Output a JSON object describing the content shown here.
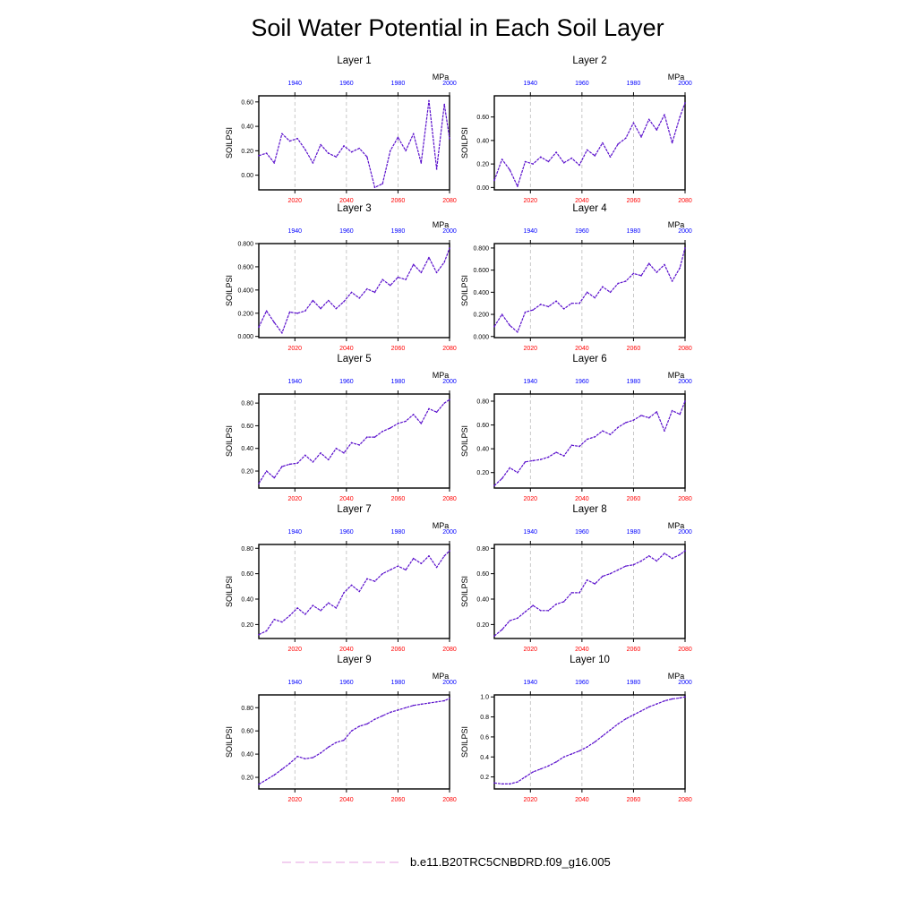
{
  "title": "Soil Water Potential in Each Soil Layer",
  "legend": {
    "label": "b.e11.B20TRC5CNBDRD.f09_g16.005"
  },
  "colors": {
    "line": "#5a10cc",
    "bottom_axis": "#ff0000",
    "top_axis": "#0000ff",
    "legend_line": "#e5a0e0",
    "gridline": "#bbbbbb"
  },
  "chart_data": {
    "type": "line",
    "layout": "5 rows x 2 columns",
    "grid": "vertical dashed lines at 2020, 2040, 2060",
    "legend_placement": "bottom-center",
    "bottom_axis": {
      "range": [
        2006,
        2080
      ],
      "ticks": [
        "2020",
        "2040",
        "2060",
        "2080"
      ]
    },
    "top_axis": {
      "range": [
        1926,
        2000
      ],
      "ticks": [
        "1940",
        "1960",
        "1980",
        "2000"
      ]
    },
    "units": "MPa",
    "ylabel": "SOILPSI",
    "series_name": "b.e11.B20TRC5CNBDRD.f09_g16.005",
    "panels": [
      {
        "title": "Layer 1",
        "ylim": [
          -0.12,
          0.65
        ],
        "yticks": [
          "0.00",
          "0.20",
          "0.40",
          "0.60"
        ],
        "x": [
          2006,
          2009,
          2012,
          2015,
          2018,
          2021,
          2024,
          2027,
          2030,
          2033,
          2036,
          2039,
          2042,
          2045,
          2048,
          2051,
          2054,
          2057,
          2060,
          2063,
          2066,
          2069,
          2072,
          2075,
          2078,
          2080
        ],
        "y": [
          0.16,
          0.18,
          0.1,
          0.34,
          0.28,
          0.3,
          0.21,
          0.1,
          0.25,
          0.18,
          0.15,
          0.24,
          0.19,
          0.22,
          0.15,
          -0.1,
          -0.07,
          0.2,
          0.31,
          0.2,
          0.34,
          0.1,
          0.61,
          0.05,
          0.58,
          0.3
        ]
      },
      {
        "title": "Layer 2",
        "ylim": [
          -0.02,
          0.78
        ],
        "yticks": [
          "0.00",
          "0.20",
          "0.40",
          "0.60"
        ],
        "x": [
          2006,
          2009,
          2012,
          2015,
          2018,
          2021,
          2024,
          2027,
          2030,
          2033,
          2036,
          2039,
          2042,
          2045,
          2048,
          2051,
          2054,
          2057,
          2060,
          2063,
          2066,
          2069,
          2072,
          2075,
          2078,
          2080
        ],
        "y": [
          0.06,
          0.24,
          0.15,
          0.01,
          0.22,
          0.2,
          0.26,
          0.22,
          0.3,
          0.21,
          0.25,
          0.19,
          0.32,
          0.27,
          0.38,
          0.26,
          0.37,
          0.42,
          0.55,
          0.43,
          0.58,
          0.49,
          0.62,
          0.38,
          0.6,
          0.72
        ]
      },
      {
        "title": "Layer 3",
        "ylim": [
          -0.01,
          0.8
        ],
        "yticks": [
          "0.000",
          "0.200",
          "0.400",
          "0.600",
          "0.800"
        ],
        "x": [
          2006,
          2009,
          2012,
          2015,
          2018,
          2021,
          2024,
          2027,
          2030,
          2033,
          2036,
          2039,
          2042,
          2045,
          2048,
          2051,
          2054,
          2057,
          2060,
          2063,
          2066,
          2069,
          2072,
          2075,
          2078,
          2080
        ],
        "y": [
          0.08,
          0.22,
          0.12,
          0.03,
          0.21,
          0.2,
          0.22,
          0.31,
          0.24,
          0.31,
          0.24,
          0.3,
          0.38,
          0.33,
          0.41,
          0.38,
          0.49,
          0.44,
          0.51,
          0.49,
          0.62,
          0.55,
          0.68,
          0.55,
          0.64,
          0.76
        ]
      },
      {
        "title": "Layer 4",
        "ylim": [
          -0.01,
          0.84
        ],
        "yticks": [
          "0.000",
          "0.200",
          "0.400",
          "0.600",
          "0.800"
        ],
        "x": [
          2006,
          2009,
          2012,
          2015,
          2018,
          2021,
          2024,
          2027,
          2030,
          2033,
          2036,
          2039,
          2042,
          2045,
          2048,
          2051,
          2054,
          2057,
          2060,
          2063,
          2066,
          2069,
          2072,
          2075,
          2078,
          2080
        ],
        "y": [
          0.09,
          0.2,
          0.1,
          0.04,
          0.22,
          0.24,
          0.29,
          0.27,
          0.32,
          0.25,
          0.3,
          0.3,
          0.4,
          0.35,
          0.45,
          0.4,
          0.48,
          0.5,
          0.57,
          0.55,
          0.66,
          0.58,
          0.65,
          0.5,
          0.62,
          0.8
        ]
      },
      {
        "title": "Layer 5",
        "ylim": [
          0.05,
          0.88
        ],
        "yticks": [
          "0.20",
          "0.40",
          "0.60",
          "0.80"
        ],
        "x": [
          2006,
          2009,
          2012,
          2015,
          2018,
          2021,
          2024,
          2027,
          2030,
          2033,
          2036,
          2039,
          2042,
          2045,
          2048,
          2051,
          2054,
          2057,
          2060,
          2063,
          2066,
          2069,
          2072,
          2075,
          2078,
          2080
        ],
        "y": [
          0.09,
          0.2,
          0.14,
          0.24,
          0.26,
          0.27,
          0.34,
          0.28,
          0.36,
          0.3,
          0.4,
          0.36,
          0.45,
          0.43,
          0.5,
          0.5,
          0.55,
          0.58,
          0.62,
          0.64,
          0.7,
          0.62,
          0.75,
          0.72,
          0.8,
          0.83
        ]
      },
      {
        "title": "Layer 6",
        "ylim": [
          0.07,
          0.86
        ],
        "yticks": [
          "0.20",
          "0.40",
          "0.60",
          "0.80"
        ],
        "x": [
          2006,
          2009,
          2012,
          2015,
          2018,
          2021,
          2024,
          2027,
          2030,
          2033,
          2036,
          2039,
          2042,
          2045,
          2048,
          2051,
          2054,
          2057,
          2060,
          2063,
          2066,
          2069,
          2072,
          2075,
          2078,
          2080
        ],
        "y": [
          0.09,
          0.15,
          0.24,
          0.2,
          0.29,
          0.3,
          0.31,
          0.33,
          0.37,
          0.34,
          0.43,
          0.42,
          0.48,
          0.5,
          0.55,
          0.52,
          0.58,
          0.62,
          0.64,
          0.68,
          0.66,
          0.71,
          0.55,
          0.72,
          0.69,
          0.8
        ]
      },
      {
        "title": "Layer 7",
        "ylim": [
          0.09,
          0.83
        ],
        "yticks": [
          "0.20",
          "0.40",
          "0.60",
          "0.80"
        ],
        "x": [
          2006,
          2009,
          2012,
          2015,
          2018,
          2021,
          2024,
          2027,
          2030,
          2033,
          2036,
          2039,
          2042,
          2045,
          2048,
          2051,
          2054,
          2057,
          2060,
          2063,
          2066,
          2069,
          2072,
          2075,
          2078,
          2080
        ],
        "y": [
          0.12,
          0.15,
          0.24,
          0.22,
          0.27,
          0.33,
          0.28,
          0.35,
          0.31,
          0.37,
          0.33,
          0.45,
          0.51,
          0.46,
          0.56,
          0.54,
          0.6,
          0.63,
          0.66,
          0.63,
          0.72,
          0.68,
          0.74,
          0.65,
          0.74,
          0.78
        ]
      },
      {
        "title": "Layer 8",
        "ylim": [
          0.09,
          0.83
        ],
        "yticks": [
          "0.20",
          "0.40",
          "0.60",
          "0.80"
        ],
        "x": [
          2006,
          2009,
          2012,
          2015,
          2018,
          2021,
          2024,
          2027,
          2030,
          2033,
          2036,
          2039,
          2042,
          2045,
          2048,
          2051,
          2054,
          2057,
          2060,
          2063,
          2066,
          2069,
          2072,
          2075,
          2078,
          2080
        ],
        "y": [
          0.11,
          0.16,
          0.23,
          0.25,
          0.3,
          0.35,
          0.31,
          0.31,
          0.36,
          0.38,
          0.45,
          0.45,
          0.55,
          0.52,
          0.58,
          0.6,
          0.63,
          0.66,
          0.67,
          0.7,
          0.74,
          0.7,
          0.76,
          0.72,
          0.75,
          0.78
        ]
      },
      {
        "title": "Layer 9",
        "ylim": [
          0.1,
          0.91
        ],
        "yticks": [
          "0.20",
          "0.40",
          "0.60",
          "0.80"
        ],
        "x": [
          2006,
          2009,
          2012,
          2015,
          2018,
          2021,
          2024,
          2027,
          2030,
          2033,
          2036,
          2039,
          2042,
          2045,
          2048,
          2051,
          2054,
          2057,
          2060,
          2063,
          2066,
          2069,
          2072,
          2075,
          2078,
          2080
        ],
        "y": [
          0.14,
          0.18,
          0.22,
          0.27,
          0.32,
          0.38,
          0.36,
          0.37,
          0.41,
          0.46,
          0.5,
          0.52,
          0.6,
          0.64,
          0.66,
          0.7,
          0.73,
          0.76,
          0.78,
          0.8,
          0.82,
          0.83,
          0.84,
          0.85,
          0.86,
          0.88
        ]
      },
      {
        "title": "Layer 10",
        "ylim": [
          0.08,
          1.02
        ],
        "yticks": [
          "0.2",
          "0.4",
          "0.6",
          "0.8",
          "1.0"
        ],
        "x": [
          2006,
          2009,
          2012,
          2015,
          2018,
          2021,
          2024,
          2027,
          2030,
          2033,
          2036,
          2039,
          2042,
          2045,
          2048,
          2051,
          2054,
          2057,
          2060,
          2063,
          2066,
          2069,
          2072,
          2075,
          2078,
          2080
        ],
        "y": [
          0.14,
          0.13,
          0.13,
          0.15,
          0.2,
          0.25,
          0.28,
          0.31,
          0.35,
          0.4,
          0.43,
          0.46,
          0.5,
          0.55,
          0.61,
          0.67,
          0.73,
          0.78,
          0.82,
          0.86,
          0.9,
          0.93,
          0.96,
          0.98,
          0.99,
          1.0
        ]
      }
    ]
  }
}
